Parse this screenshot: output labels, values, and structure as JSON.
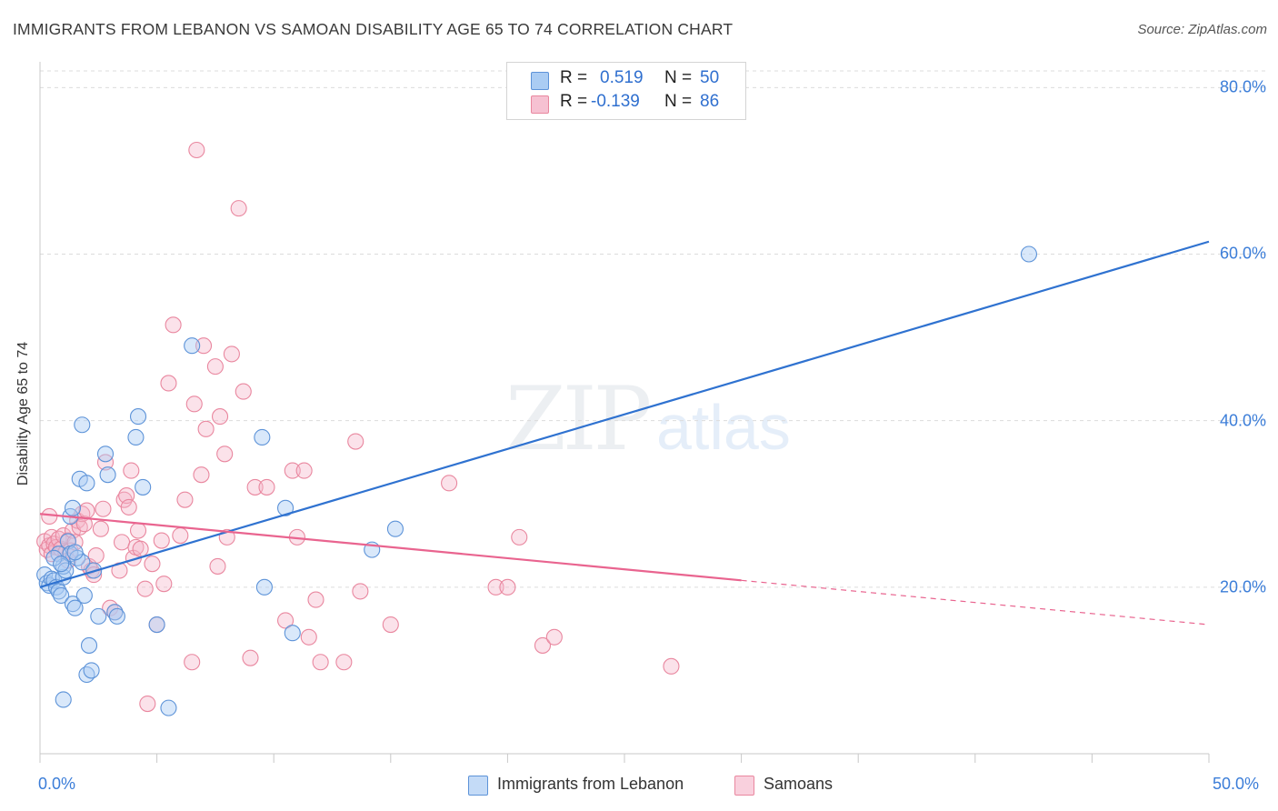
{
  "header": {
    "title": "IMMIGRANTS FROM LEBANON VS SAMOAN DISABILITY AGE 65 TO 74 CORRELATION CHART",
    "source": "Source: ZipAtlas.com"
  },
  "watermark": {
    "zip": "ZIP",
    "atlas": "atlas"
  },
  "stats": {
    "blue": {
      "r_label": "R =",
      "r_value": "0.519",
      "n_label": "N =",
      "n_value": "50"
    },
    "pink": {
      "r_label": "R =",
      "r_value": "-0.139",
      "n_label": "N =",
      "n_value": "86"
    }
  },
  "legend": {
    "blue_label": "Immigrants from Lebanon",
    "pink_label": "Samoans"
  },
  "colors": {
    "blue": "#2f72d0",
    "blue_fill": "#aaccf3",
    "pink": "#e9648f",
    "pink_fill": "#f6b7cb",
    "tick_text": "#3b7dd8"
  },
  "chart_data": {
    "type": "scatter",
    "ylabel": "Disability Age 65 to 74",
    "xlim": [
      0,
      50
    ],
    "ylim": [
      0,
      82
    ],
    "x_tick_labels": [
      "0.0%",
      "50.0%"
    ],
    "y_ticks": [
      20,
      40,
      60,
      80
    ],
    "y_tick_labels": [
      "20.0%",
      "40.0%",
      "60.0%",
      "80.0%"
    ],
    "grid": "horizontal dashed",
    "series": [
      {
        "name": "Immigrants from Lebanon",
        "color": "blue",
        "trend": {
          "x0": 0,
          "y0": 20.0,
          "x1": 50,
          "y1": 61.5,
          "solid_until": 50
        },
        "points": [
          [
            0.2,
            21.5
          ],
          [
            0.3,
            20.5
          ],
          [
            0.4,
            20.2
          ],
          [
            0.5,
            21.0
          ],
          [
            0.6,
            20.8
          ],
          [
            0.7,
            20.0
          ],
          [
            0.8,
            19.5
          ],
          [
            0.8,
            24.0
          ],
          [
            0.9,
            19.0
          ],
          [
            1.0,
            21.2
          ],
          [
            1.0,
            22.5
          ],
          [
            1.1,
            22.0
          ],
          [
            1.2,
            25.5
          ],
          [
            1.3,
            28.5
          ],
          [
            1.3,
            24.0
          ],
          [
            1.4,
            29.5
          ],
          [
            1.4,
            18.0
          ],
          [
            1.5,
            17.5
          ],
          [
            1.6,
            23.5
          ],
          [
            1.7,
            33.0
          ],
          [
            1.8,
            23.0
          ],
          [
            1.8,
            39.5
          ],
          [
            1.9,
            19.0
          ],
          [
            2.0,
            32.5
          ],
          [
            2.0,
            9.5
          ],
          [
            2.1,
            13.0
          ],
          [
            2.2,
            10.0
          ],
          [
            2.3,
            22.0
          ],
          [
            2.5,
            16.5
          ],
          [
            2.8,
            36.0
          ],
          [
            2.9,
            33.5
          ],
          [
            3.2,
            17.0
          ],
          [
            3.3,
            16.5
          ],
          [
            4.1,
            38.0
          ],
          [
            4.2,
            40.5
          ],
          [
            4.4,
            32.0
          ],
          [
            5.0,
            15.5
          ],
          [
            5.5,
            5.5
          ],
          [
            6.5,
            49.0
          ],
          [
            9.5,
            38.0
          ],
          [
            9.6,
            20.0
          ],
          [
            10.5,
            29.5
          ],
          [
            10.8,
            14.5
          ],
          [
            14.2,
            24.5
          ],
          [
            15.2,
            27.0
          ],
          [
            42.3,
            60.0
          ],
          [
            1.0,
            6.5
          ],
          [
            0.6,
            23.5
          ],
          [
            0.9,
            22.8
          ],
          [
            1.5,
            24.2
          ]
        ]
      },
      {
        "name": "Samoans",
        "color": "pink",
        "trend": {
          "x0": 0,
          "y0": 28.8,
          "x1": 50,
          "y1": 15.5,
          "solid_until": 30
        },
        "points": [
          [
            0.2,
            25.5
          ],
          [
            0.3,
            24.5
          ],
          [
            0.4,
            25.0
          ],
          [
            0.5,
            24.0
          ],
          [
            0.5,
            26.0
          ],
          [
            0.6,
            25.2
          ],
          [
            0.7,
            24.8
          ],
          [
            0.8,
            25.8
          ],
          [
            0.9,
            24.6
          ],
          [
            1.0,
            26.2
          ],
          [
            1.1,
            24.2
          ],
          [
            1.2,
            25.6
          ],
          [
            1.3,
            24.4
          ],
          [
            1.4,
            26.8
          ],
          [
            1.5,
            25.4
          ],
          [
            1.6,
            28.0
          ],
          [
            1.7,
            27.2
          ],
          [
            1.8,
            28.8
          ],
          [
            1.9,
            27.6
          ],
          [
            2.0,
            29.2
          ],
          [
            2.1,
            22.5
          ],
          [
            2.2,
            22.0
          ],
          [
            2.3,
            21.5
          ],
          [
            2.4,
            23.8
          ],
          [
            2.6,
            27.0
          ],
          [
            2.7,
            29.4
          ],
          [
            2.8,
            35.0
          ],
          [
            3.0,
            17.5
          ],
          [
            3.2,
            17.0
          ],
          [
            3.4,
            22.0
          ],
          [
            3.5,
            25.4
          ],
          [
            3.6,
            30.5
          ],
          [
            3.7,
            31.0
          ],
          [
            3.8,
            29.6
          ],
          [
            3.9,
            34.0
          ],
          [
            4.0,
            23.5
          ],
          [
            4.1,
            24.8
          ],
          [
            4.2,
            26.8
          ],
          [
            4.3,
            24.6
          ],
          [
            4.5,
            19.8
          ],
          [
            4.6,
            6.0
          ],
          [
            4.8,
            22.8
          ],
          [
            5.0,
            15.5
          ],
          [
            5.2,
            25.6
          ],
          [
            5.3,
            20.4
          ],
          [
            5.5,
            44.5
          ],
          [
            5.7,
            51.5
          ],
          [
            6.0,
            26.2
          ],
          [
            6.2,
            30.5
          ],
          [
            6.5,
            11.0
          ],
          [
            6.6,
            42.0
          ],
          [
            6.7,
            72.5
          ],
          [
            6.9,
            33.5
          ],
          [
            7.0,
            49.0
          ],
          [
            7.1,
            39.0
          ],
          [
            7.5,
            46.5
          ],
          [
            7.6,
            22.5
          ],
          [
            7.7,
            40.5
          ],
          [
            7.9,
            36.0
          ],
          [
            8.0,
            26.0
          ],
          [
            8.2,
            48.0
          ],
          [
            8.5,
            65.5
          ],
          [
            8.7,
            43.5
          ],
          [
            9.0,
            11.5
          ],
          [
            9.2,
            32.0
          ],
          [
            9.7,
            32.0
          ],
          [
            10.5,
            16.0
          ],
          [
            10.8,
            34.0
          ],
          [
            11.0,
            26.0
          ],
          [
            11.3,
            34.0
          ],
          [
            11.5,
            14.0
          ],
          [
            11.8,
            18.5
          ],
          [
            12.0,
            11.0
          ],
          [
            13.0,
            11.0
          ],
          [
            13.5,
            37.5
          ],
          [
            13.7,
            19.5
          ],
          [
            15.0,
            15.5
          ],
          [
            17.5,
            32.5
          ],
          [
            19.5,
            20.0
          ],
          [
            20.0,
            20.0
          ],
          [
            20.5,
            26.0
          ],
          [
            21.5,
            13.0
          ],
          [
            22.0,
            14.0
          ],
          [
            27.0,
            10.5
          ],
          [
            0.4,
            28.5
          ],
          [
            1.2,
            23.2
          ]
        ]
      }
    ]
  }
}
